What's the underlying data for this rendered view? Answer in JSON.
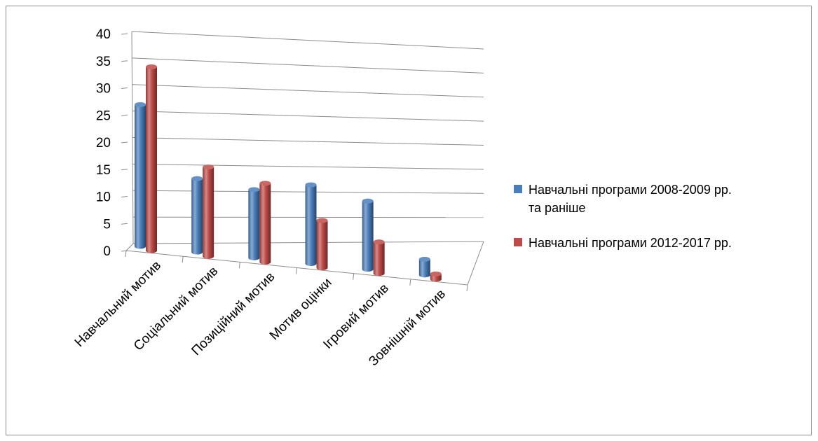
{
  "chart_data": {
    "type": "bar",
    "title": "",
    "xlabel": "",
    "ylabel": "",
    "ylim": [
      0,
      40
    ],
    "yticks": [
      0,
      5,
      10,
      15,
      20,
      25,
      30,
      35,
      40
    ],
    "grid": true,
    "legend_position": "right",
    "categories": [
      "Навчальний мотив",
      "Соціальний мотив",
      "Позиційний мотив",
      "Мотив оцінки",
      "Ігровий мотив",
      "Зовнішній мотив"
    ],
    "series": [
      {
        "name": "Навчальні програми 2008-2009 рр. та раніше",
        "legend_lines": [
          "Навчальні програми 2008-2009 рр.",
          "та раніше"
        ],
        "color": "#4a7ebb",
        "values": [
          27,
          14,
          13,
          15,
          13,
          3
        ]
      },
      {
        "name": "Навчальні програми 2012-2017 рр.",
        "legend_lines": [
          "Навчальні програми 2012-2017 рр."
        ],
        "color": "#be4b48",
        "values": [
          35,
          17,
          15,
          9,
          6,
          1
        ]
      }
    ]
  }
}
